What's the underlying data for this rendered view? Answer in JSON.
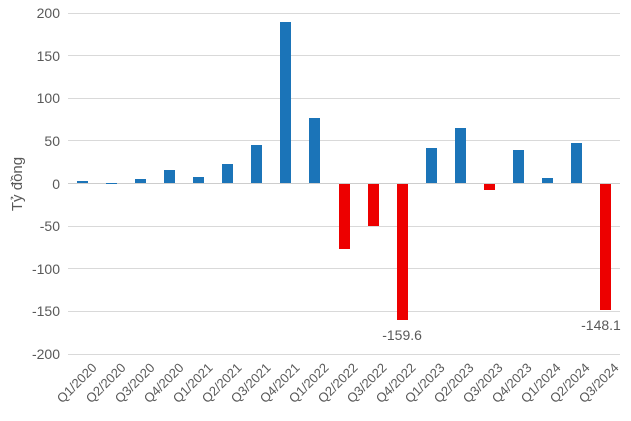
{
  "chart_data": {
    "type": "bar",
    "title": "",
    "xlabel": "",
    "ylabel": "Tỷ đồng",
    "ylim": [
      -200,
      200
    ],
    "yticks": [
      200,
      150,
      100,
      50,
      0,
      -50,
      -100,
      -150,
      -200
    ],
    "grid": true,
    "legend_position": "none",
    "categories": [
      "Q1/2020",
      "Q2/2020",
      "Q3/2020",
      "Q4/2020",
      "Q1/2021",
      "Q2/2021",
      "Q3/2021",
      "Q4/2021",
      "Q1/2022",
      "Q2/2022",
      "Q3/2022",
      "Q4/2022",
      "Q1/2023",
      "Q2/2023",
      "Q3/2023",
      "Q4/2023",
      "Q1/2024",
      "Q2/2024",
      "Q3/2024"
    ],
    "values": [
      3,
      1,
      5,
      16,
      8,
      23,
      45,
      190,
      77,
      -77,
      -50,
      -159.6,
      42,
      65,
      -8,
      39,
      6,
      47,
      -148.1
    ],
    "positive_color": "#1b74b8",
    "negative_color": "#ed0000",
    "annotations": [
      {
        "category": "Q4/2022",
        "text": "-159.6"
      },
      {
        "category": "Q3/2024",
        "text": "-148.1"
      }
    ]
  }
}
